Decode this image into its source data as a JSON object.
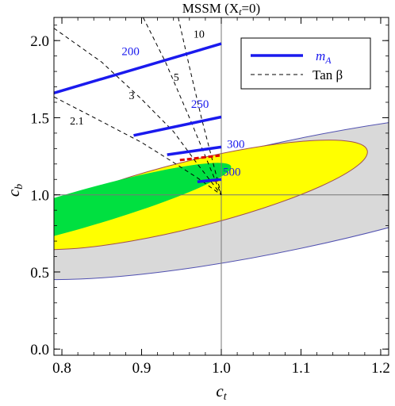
{
  "chart_data": {
    "type": "scatter",
    "title": "MSSM (X",
    "title_sub": "t",
    "title_tail": "=0)",
    "xlabel": "c",
    "xlabel_sub": "t",
    "ylabel": "c",
    "ylabel_sub": "b",
    "xlim": [
      0.79,
      1.21
    ],
    "ylim": [
      -0.04,
      2.15
    ],
    "xticks": [
      "0.8",
      "0.9",
      "1.0",
      "1.1",
      "1.2"
    ],
    "xtick_values": [
      0.8,
      0.9,
      1.0,
      1.1,
      1.2
    ],
    "yticks": [
      "0.0",
      "0.5",
      "1.0",
      "1.5",
      "2.0"
    ],
    "ytick_values": [
      0.0,
      0.5,
      1.0,
      1.5,
      2.0
    ],
    "reference_lines": {
      "x": 1.0,
      "y": 1.0
    },
    "colors": {
      "outer_region": "#d9d9d9",
      "middle_region": "#ffff00",
      "inner_region": "#00e040",
      "ma_lines": "#1a1aee",
      "tanb_lines": "#000000",
      "red_segment": "#e00000"
    },
    "regions": [
      {
        "label": "outer",
        "center": [
          1.09,
          1.0
        ],
        "semi_x": 0.4,
        "semi_y": 0.35,
        "angle_deg": 12
      },
      {
        "label": "middle",
        "center": [
          0.96,
          1.0
        ],
        "semi_x": 0.23,
        "semi_y": 0.215,
        "angle_deg": 14
      },
      {
        "label": "inner",
        "center": [
          0.82,
          0.9
        ],
        "semi_x": 0.2,
        "semi_y": 0.12,
        "angle_deg": 16
      }
    ],
    "ma_series": [
      {
        "label": "200",
        "x": [
          0.79,
          1.0
        ],
        "y": [
          1.66,
          1.98
        ],
        "label_at": [
          0.875,
          1.905
        ]
      },
      {
        "label": "250",
        "x": [
          0.89,
          1.0
        ],
        "y": [
          1.385,
          1.505
        ],
        "label_at": [
          0.962,
          1.565
        ]
      },
      {
        "label": "300",
        "x": [
          0.932,
          1.0
        ],
        "y": [
          1.26,
          1.31
        ],
        "label_at": [
          1.007,
          1.305
        ]
      },
      {
        "label": "500",
        "x": [
          0.97,
          1.0
        ],
        "y": [
          1.085,
          1.1
        ],
        "label_at": [
          1.002,
          1.125
        ]
      }
    ],
    "tanb_series": [
      {
        "label": "2.1",
        "x": [
          0.79,
          0.85,
          0.9,
          0.94,
          0.97,
          1.0
        ],
        "y": [
          1.635,
          1.475,
          1.34,
          1.21,
          1.11,
          1.0
        ],
        "label_at": [
          0.81,
          1.455
        ]
      },
      {
        "label": "3",
        "x": [
          0.79,
          0.85,
          0.9,
          0.94,
          0.97,
          1.0
        ],
        "y": [
          2.08,
          1.86,
          1.62,
          1.41,
          1.2,
          1.0
        ],
        "label_at": [
          0.884,
          1.62
        ]
      },
      {
        "label": "5",
        "x": [
          0.902,
          0.93,
          0.96,
          0.98,
          1.0
        ],
        "y": [
          2.15,
          1.86,
          1.5,
          1.25,
          1.0
        ],
        "label_at": [
          0.94,
          1.74
        ]
      },
      {
        "label": "10",
        "x": [
          0.946,
          0.96,
          0.975,
          0.99,
          1.0
        ],
        "y": [
          2.15,
          1.83,
          1.5,
          1.2,
          1.0
        ],
        "label_at": [
          0.965,
          2.02
        ]
      }
    ],
    "red_segments": [
      {
        "x": [
          0.948,
          0.998
        ],
        "y": [
          1.225,
          1.255
        ]
      },
      {
        "x": [
          0.972,
          0.998
        ],
        "y": [
          1.085,
          1.095
        ]
      }
    ],
    "legend": {
      "placement": "top-right",
      "entries": [
        {
          "label": "m",
          "sub": "A",
          "style": "solid-blue"
        },
        {
          "label": "Tan β",
          "sub": "",
          "style": "dashed-black"
        }
      ]
    }
  }
}
